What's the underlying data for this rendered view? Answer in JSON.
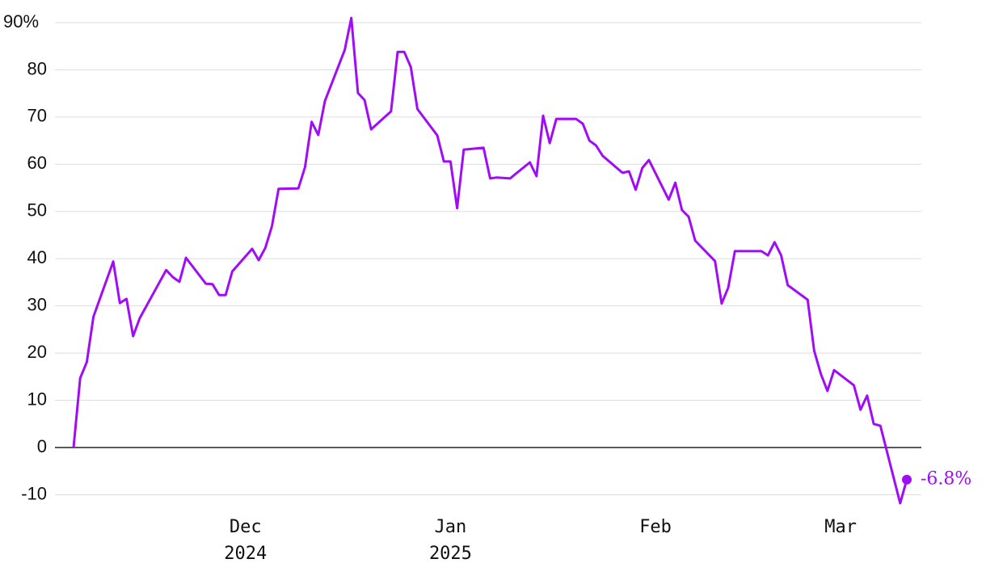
{
  "chart_data": {
    "type": "line",
    "series": [
      {
        "color": "#a10cf7",
        "x": [
          0,
          1,
          2,
          3,
          6,
          7,
          8,
          9,
          10,
          14,
          15,
          16,
          17,
          20,
          21,
          22,
          23,
          24,
          27,
          28,
          29,
          30,
          31,
          34,
          35,
          36,
          37,
          38,
          41,
          42,
          43,
          44,
          45,
          48,
          49,
          50,
          51,
          52,
          55,
          56,
          57,
          58,
          59,
          62,
          63,
          64,
          66,
          69,
          70,
          71,
          72,
          73,
          76,
          77,
          78,
          79,
          80,
          83,
          84,
          85,
          86,
          87,
          90,
          91,
          92,
          93,
          94,
          97,
          98,
          99,
          100,
          104,
          105,
          106,
          107,
          108,
          111,
          112,
          113,
          114,
          115,
          118,
          119,
          120,
          121,
          122,
          125,
          126
        ],
        "values": [
          0,
          14.7,
          18.1,
          27.7,
          39.4,
          30.6,
          31.5,
          23.6,
          27.4,
          37.6,
          36.1,
          35.1,
          40.2,
          34.7,
          34.6,
          32.3,
          32.3,
          37.3,
          42.1,
          39.7,
          42.3,
          46.9,
          54.8,
          54.9,
          59.4,
          69.0,
          66.2,
          73.4,
          84.2,
          91.0,
          75.1,
          73.6,
          67.4,
          71.2,
          83.8,
          83.8,
          80.6,
          71.7,
          66.1,
          60.6,
          60.6,
          50.7,
          63.1,
          63.5,
          57.0,
          57.2,
          57.0,
          60.4,
          57.5,
          70.3,
          64.5,
          69.6,
          69.6,
          68.6,
          65.0,
          64.0,
          61.8,
          58.2,
          58.5,
          54.6,
          59.2,
          60.9,
          52.5,
          56.1,
          50.3,
          48.9,
          43.8,
          39.5,
          30.5,
          33.9,
          41.6,
          41.6,
          40.7,
          43.5,
          40.7,
          34.4,
          31.3,
          20.5,
          15.6,
          12.0,
          16.4,
          13.2,
          8.0,
          11.0,
          5.0,
          4.6,
          -11.8,
          -6.8
        ]
      }
    ],
    "annotation": "-6.8%",
    "xlim": [
      -3,
      128.2
    ],
    "xticks": [
      {
        "value": 26,
        "label": "Dec 2024"
      },
      {
        "value": 57,
        "label": "Jan 2025"
      },
      {
        "value": 88,
        "label": "Feb"
      },
      {
        "value": 116,
        "label": "Mar"
      }
    ],
    "ylim": [
      -13,
      92
    ],
    "yticks": [
      -10,
      0,
      10,
      20,
      30,
      40,
      50,
      60,
      70,
      80,
      {
        "value": 90,
        "label": "90%"
      }
    ],
    "grid": true
  }
}
